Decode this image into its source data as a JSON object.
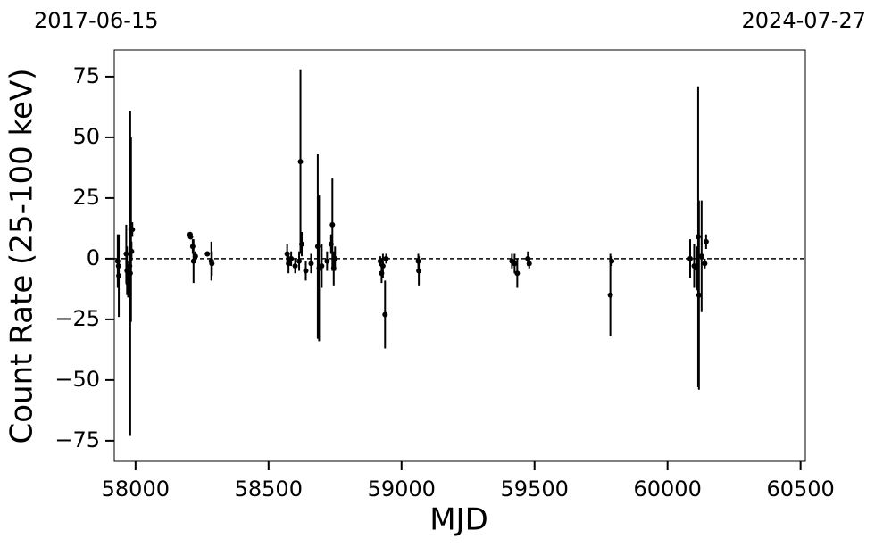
{
  "chart_data": {
    "type": "scatter",
    "xlabel": "MJD",
    "ylabel": "Count Rate (25-100 keV)",
    "annotations": [
      "2017-06-15",
      "2024-07-27"
    ],
    "x": [
      57933,
      57936,
      57937,
      57965,
      57968,
      57972,
      57975,
      57978,
      57980,
      57983,
      57985,
      57988,
      58205,
      58207,
      58215,
      58218,
      58225,
      58270,
      58285,
      58287,
      58570,
      58575,
      58585,
      58600,
      58615,
      58620,
      58625,
      58640,
      58660,
      58685,
      58690,
      58700,
      58720,
      58735,
      58740,
      58745,
      58750,
      58920,
      58925,
      58930,
      58938,
      58942,
      59063,
      59065,
      59415,
      59425,
      59435,
      59475,
      59480,
      59785,
      59790,
      60085,
      60100,
      60110,
      60115,
      60118,
      60128,
      60140,
      60145
    ],
    "y": [
      -1,
      -3,
      -7,
      2,
      -5,
      -10,
      -8,
      -3,
      -6,
      12,
      3,
      12,
      10,
      9,
      5,
      -1,
      1,
      2,
      -1,
      -2,
      2,
      -2,
      0,
      -3,
      -1,
      40,
      6,
      -5,
      -2,
      5,
      -4,
      -3,
      -1,
      6,
      14,
      -4,
      0,
      -1,
      -6,
      -3,
      -23,
      0,
      -1,
      -5,
      -1,
      -2,
      -6,
      0,
      -2,
      -15,
      -1,
      0,
      -3,
      -4,
      9,
      -15,
      1,
      -2,
      7
    ],
    "errors": [
      11,
      5,
      17,
      12,
      10,
      6,
      7,
      5,
      67,
      38,
      4,
      3,
      1,
      1,
      3,
      9,
      2,
      1,
      8,
      5,
      4,
      4,
      3,
      3,
      4,
      38,
      5,
      4,
      4,
      38,
      30,
      9,
      4,
      4,
      19,
      7,
      5,
      2,
      4,
      5,
      14,
      2,
      3,
      6,
      3,
      4,
      6,
      3,
      2,
      17,
      2,
      8,
      9,
      9,
      62,
      39,
      23,
      2,
      3
    ],
    "color": "#000000",
    "hline": 0,
    "xlim": [
      57920,
      60518
    ],
    "ylim": [
      -83.5,
      86
    ],
    "xticks": [
      58000,
      58500,
      59000,
      59500,
      60000,
      60500
    ],
    "yticks": [
      {
        "value": -75,
        "label": "−75"
      },
      {
        "value": -50,
        "label": "−50"
      },
      {
        "value": -25,
        "label": "−25"
      },
      0,
      25,
      50,
      75
    ]
  }
}
